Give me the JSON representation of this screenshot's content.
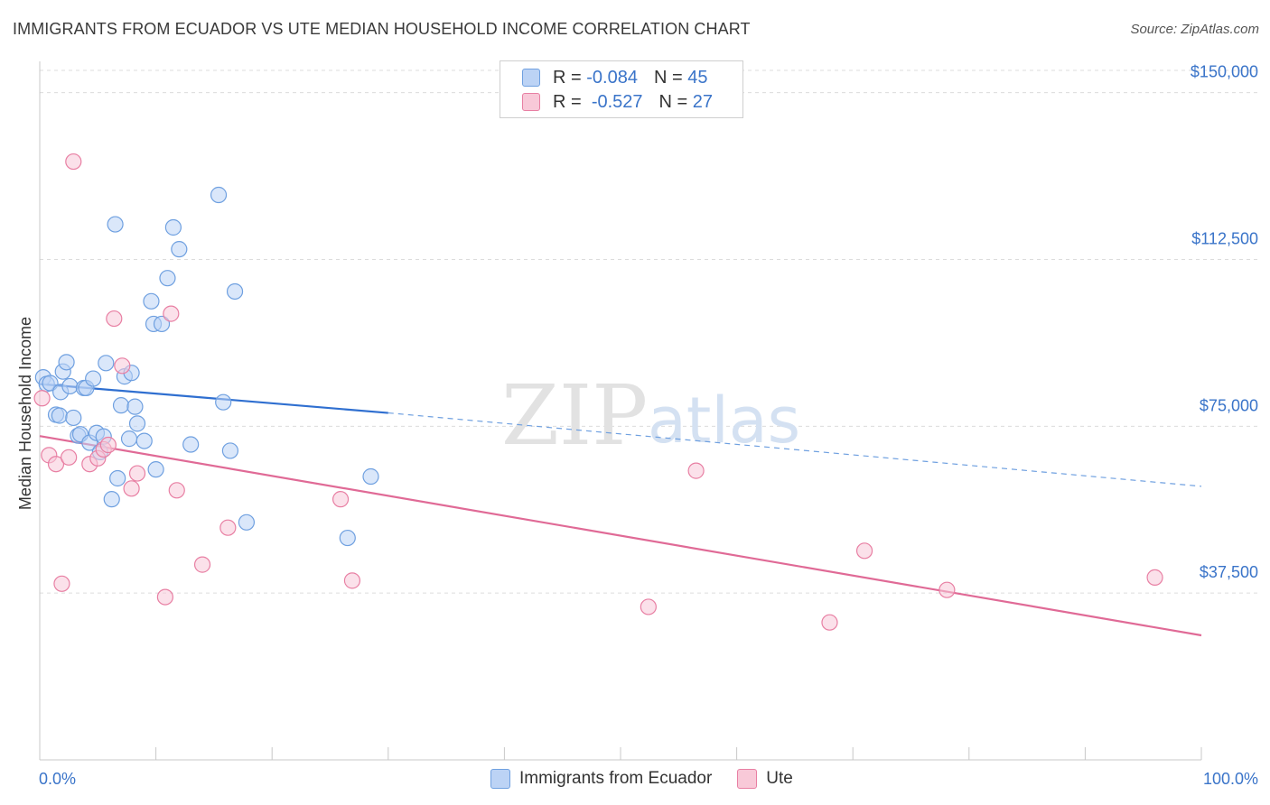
{
  "title": "IMMIGRANTS FROM ECUADOR VS UTE MEDIAN HOUSEHOLD INCOME CORRELATION CHART",
  "source": "Source: ZipAtlas.com",
  "watermark": {
    "part1": "ZIP",
    "part2": "atlas"
  },
  "legend": {
    "rows": [
      {
        "r_label": "R =",
        "r_value": "-0.084",
        "n_label": "N =",
        "n_value": "45",
        "color": "#6fa0e0",
        "fill": "#bcd3f5"
      },
      {
        "r_label": "R =",
        "r_value": "-0.527",
        "n_label": "N =",
        "n_value": "27",
        "color": "#e87fa3",
        "fill": "#f8c9d8"
      }
    ]
  },
  "bottom_legend": [
    "Immigrants from Ecuador",
    "Ute"
  ],
  "chart_data": {
    "type": "scatter",
    "title": "IMMIGRANTS FROM ECUADOR VS UTE MEDIAN HOUSEHOLD INCOME CORRELATION CHART",
    "xlabel": "",
    "ylabel": "Median Household Income",
    "xlim": [
      0,
      100
    ],
    "ylim": [
      0,
      155000
    ],
    "x_tick_labels": [
      "0.0%",
      "100.0%"
    ],
    "y_ticks": [
      37500,
      75000,
      112500,
      150000
    ],
    "y_tick_labels": [
      "$37,500",
      "$75,000",
      "$112,500",
      "$150,000"
    ],
    "series": [
      {
        "name": "Immigrants from Ecuador",
        "color": "#6fa0e0",
        "fill": "#bcd3f5",
        "points": [
          [
            0.3,
            86000
          ],
          [
            0.6,
            84500
          ],
          [
            0.9,
            84700
          ],
          [
            1.4,
            77600
          ],
          [
            1.7,
            77400
          ],
          [
            1.8,
            82700
          ],
          [
            2.0,
            87300
          ],
          [
            2.3,
            89400
          ],
          [
            2.6,
            84000
          ],
          [
            2.9,
            76900
          ],
          [
            3.3,
            72900
          ],
          [
            3.5,
            73200
          ],
          [
            3.8,
            83600
          ],
          [
            4.0,
            83600
          ],
          [
            4.3,
            71300
          ],
          [
            4.6,
            85700
          ],
          [
            4.9,
            73500
          ],
          [
            5.2,
            69200
          ],
          [
            5.5,
            72700
          ],
          [
            5.7,
            89200
          ],
          [
            6.2,
            58600
          ],
          [
            6.5,
            120400
          ],
          [
            6.7,
            63300
          ],
          [
            7.0,
            79700
          ],
          [
            7.3,
            86200
          ],
          [
            7.7,
            72200
          ],
          [
            7.9,
            87000
          ],
          [
            8.2,
            79400
          ],
          [
            8.4,
            75600
          ],
          [
            9.0,
            71700
          ],
          [
            9.6,
            103100
          ],
          [
            9.8,
            98000
          ],
          [
            10.0,
            65300
          ],
          [
            10.5,
            98000
          ],
          [
            11.0,
            108300
          ],
          [
            11.5,
            119700
          ],
          [
            12.0,
            114800
          ],
          [
            13.0,
            70900
          ],
          [
            15.4,
            127000
          ],
          [
            15.8,
            80400
          ],
          [
            16.4,
            69500
          ],
          [
            16.8,
            105300
          ],
          [
            17.8,
            53400
          ],
          [
            26.5,
            49900
          ],
          [
            28.5,
            63700
          ]
        ]
      },
      {
        "name": "Ute",
        "color": "#e87fa3",
        "fill": "#f8c9d8",
        "points": [
          [
            0.2,
            81300
          ],
          [
            0.8,
            68500
          ],
          [
            1.4,
            66500
          ],
          [
            1.9,
            39600
          ],
          [
            2.5,
            68000
          ],
          [
            2.9,
            134500
          ],
          [
            4.3,
            66500
          ],
          [
            5.0,
            67800
          ],
          [
            5.5,
            69800
          ],
          [
            5.9,
            70800
          ],
          [
            6.4,
            99200
          ],
          [
            7.1,
            88600
          ],
          [
            7.9,
            61000
          ],
          [
            8.4,
            64400
          ],
          [
            10.8,
            36600
          ],
          [
            11.3,
            100300
          ],
          [
            11.8,
            60600
          ],
          [
            14.0,
            43900
          ],
          [
            16.2,
            52200
          ],
          [
            25.9,
            58600
          ],
          [
            26.9,
            40300
          ],
          [
            52.4,
            34400
          ],
          [
            56.5,
            65000
          ],
          [
            68.0,
            30900
          ],
          [
            71.0,
            47000
          ],
          [
            78.1,
            38200
          ],
          [
            96.0,
            41000
          ]
        ]
      }
    ],
    "trend_lines": [
      {
        "series": "Immigrants from Ecuador",
        "x_start": 0,
        "y_start": 84500,
        "x_solid_end": 30,
        "y_solid_end": 78000,
        "x_end": 100,
        "y_end": 61500,
        "style": "solid then dashed"
      },
      {
        "series": "Ute",
        "x_start": 0,
        "y_start": 72800,
        "x_end": 100,
        "y_end": 28000,
        "style": "solid"
      }
    ]
  }
}
